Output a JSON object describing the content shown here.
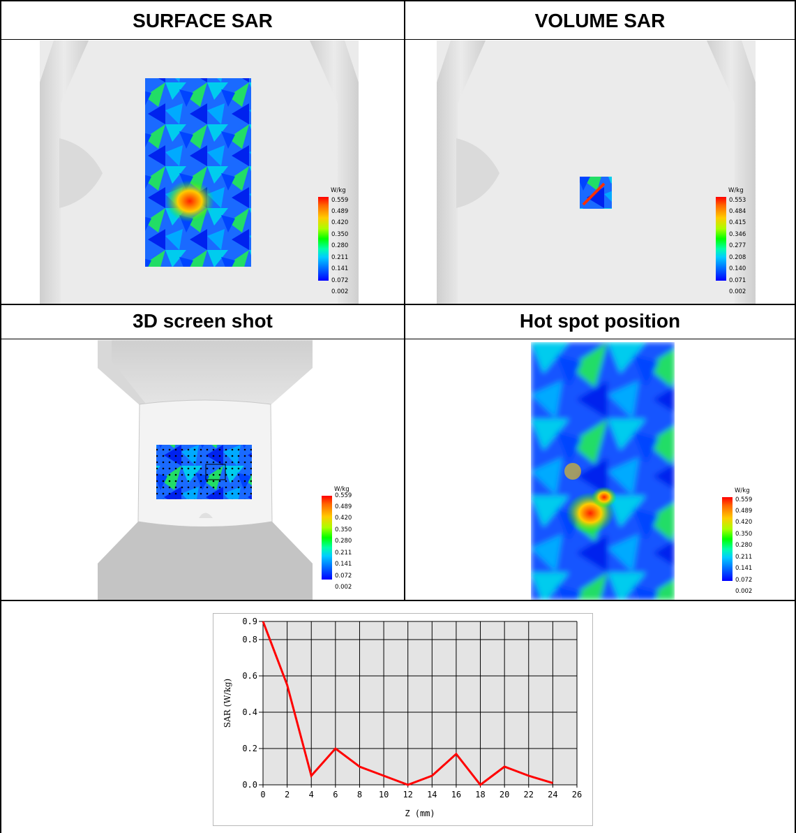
{
  "headers": {
    "surface": "SURFACE SAR",
    "volume": "VOLUME SAR",
    "screen3d": "3D screen shot",
    "hotspot": "Hot spot position"
  },
  "legend_surface": {
    "unit": "W/kg",
    "ticks": [
      "0.559",
      "0.489",
      "0.420",
      "0.350",
      "0.280",
      "0.211",
      "0.141",
      "0.072",
      "0.002"
    ]
  },
  "legend_volume": {
    "unit": "W/kg",
    "ticks": [
      "0.553",
      "0.484",
      "0.415",
      "0.346",
      "0.277",
      "0.208",
      "0.140",
      "0.071",
      "0.002"
    ]
  },
  "legend_3d": {
    "unit": "W/kg",
    "ticks": [
      "0.559",
      "0.489",
      "0.420",
      "0.350",
      "0.280",
      "0.211",
      "0.141",
      "0.072",
      "0.002"
    ]
  },
  "legend_hotspot": {
    "unit": "W/kg",
    "ticks": [
      "0.559",
      "0.489",
      "0.420",
      "0.350",
      "0.280",
      "0.211",
      "0.141",
      "0.072",
      "0.002"
    ]
  },
  "colors": {
    "line": "#ff0000",
    "plot_bg": "#e4e4e4"
  },
  "chart_data": {
    "type": "line",
    "x": [
      0,
      2,
      4,
      6,
      8,
      10,
      12,
      14,
      16,
      18,
      20,
      22,
      24
    ],
    "series": [
      {
        "values": [
          0.9,
          0.55,
          0.05,
          0.2,
          0.1,
          0.05,
          0.0,
          0.05,
          0.17,
          0.0,
          0.1,
          0.05,
          0.01
        ]
      }
    ],
    "xlabel": "Z (mm)",
    "ylabel": "SAR (W/kg)",
    "xlim": [
      0,
      26
    ],
    "ylim": [
      0,
      0.9
    ],
    "xticks": [
      "0",
      "2",
      "4",
      "6",
      "8",
      "10",
      "12",
      "14",
      "16",
      "18",
      "20",
      "22",
      "24",
      "26"
    ],
    "yticks": [
      "0.0",
      "0.2",
      "0.4",
      "0.6",
      "0.8",
      "0.9"
    ],
    "grid": true
  }
}
